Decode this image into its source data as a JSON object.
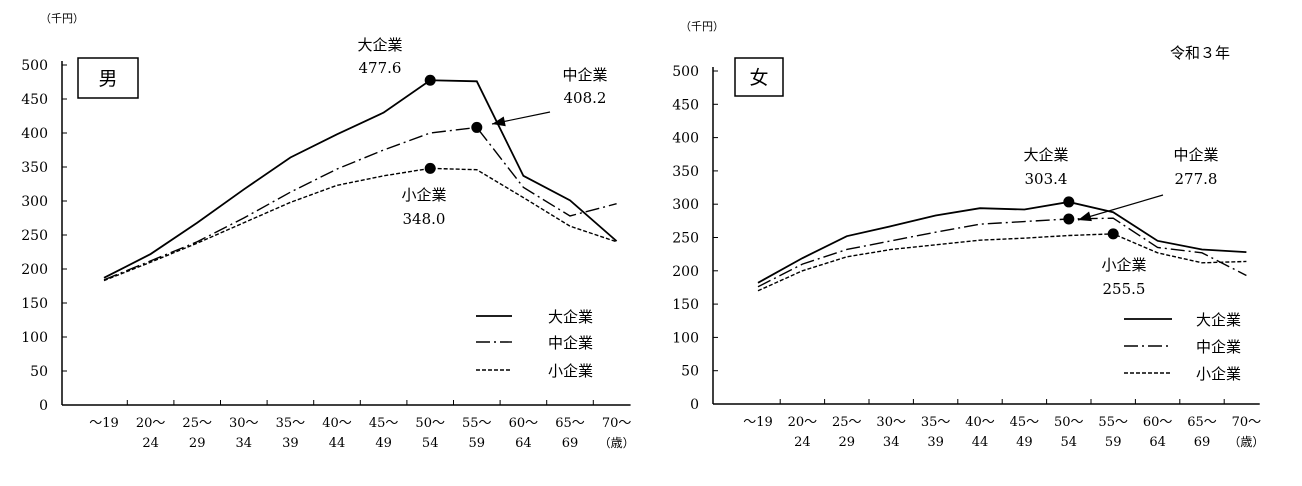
{
  "note": "令和３年",
  "chart_data": [
    {
      "type": "line",
      "title": "男",
      "ylabel": "（千円）",
      "xunit": "（歳）",
      "ylim": [
        0,
        500
      ],
      "yticks": [
        0,
        50,
        100,
        150,
        200,
        250,
        300,
        350,
        400,
        450,
        500
      ],
      "categories": [
        [
          "〜19",
          ""
        ],
        [
          "20〜",
          "24"
        ],
        [
          "25〜",
          "29"
        ],
        [
          "30〜",
          "34"
        ],
        [
          "35〜",
          "39"
        ],
        [
          "40〜",
          "44"
        ],
        [
          "45〜",
          "49"
        ],
        [
          "50〜",
          "54"
        ],
        [
          "55〜",
          "59"
        ],
        [
          "60〜",
          "64"
        ],
        [
          "65〜",
          "69"
        ],
        [
          "70〜",
          ""
        ]
      ],
      "series": [
        {
          "name": "大企業",
          "style": "solid",
          "values": [
            187,
            222,
            268,
            317,
            364,
            398,
            430,
            477.6,
            476,
            337,
            301,
            241
          ]
        },
        {
          "name": "中企業",
          "style": "dashdot",
          "values": [
            184,
            212,
            240,
            275,
            313,
            347,
            375,
            400,
            408.2,
            320,
            278,
            296
          ]
        },
        {
          "name": "小企業",
          "style": "dashed",
          "values": [
            183,
            210,
            238,
            268,
            298,
            323,
            337,
            348.0,
            346,
            305,
            263,
            240
          ]
        }
      ],
      "annotations": [
        {
          "series": 0,
          "index": 7,
          "label": "大企業",
          "value": "477.6"
        },
        {
          "series": 1,
          "index": 8,
          "label": "中企業",
          "value": "408.2"
        },
        {
          "series": 2,
          "index": 7,
          "label": "小企業",
          "value": "348.0"
        }
      ],
      "legend": "bottom-right"
    },
    {
      "type": "line",
      "title": "女",
      "ylabel": "（千円）",
      "xunit": "（歳）",
      "ylim": [
        0,
        500
      ],
      "yticks": [
        0,
        50,
        100,
        150,
        200,
        250,
        300,
        350,
        400,
        450,
        500
      ],
      "categories": [
        [
          "〜19",
          ""
        ],
        [
          "20〜",
          "24"
        ],
        [
          "25〜",
          "29"
        ],
        [
          "30〜",
          "34"
        ],
        [
          "35〜",
          "39"
        ],
        [
          "40〜",
          "44"
        ],
        [
          "45〜",
          "49"
        ],
        [
          "50〜",
          "54"
        ],
        [
          "55〜",
          "59"
        ],
        [
          "60〜",
          "64"
        ],
        [
          "65〜",
          "69"
        ],
        [
          "70〜",
          ""
        ]
      ],
      "series": [
        {
          "name": "大企業",
          "style": "solid",
          "values": [
            182,
            219,
            252,
            267,
            283,
            294,
            292,
            303.4,
            288,
            245,
            232,
            228
          ]
        },
        {
          "name": "中企業",
          "style": "dashdot",
          "values": [
            176,
            210,
            232,
            245,
            258,
            270,
            274,
            277.8,
            279,
            235,
            227,
            193
          ]
        },
        {
          "name": "小企業",
          "style": "dashed",
          "values": [
            170,
            200,
            221,
            232,
            239,
            246,
            249,
            253,
            255.5,
            227,
            212,
            214
          ]
        }
      ],
      "annotations": [
        {
          "series": 0,
          "index": 7,
          "label": "大企業",
          "value": "303.4"
        },
        {
          "series": 1,
          "index": 7,
          "label": "中企業",
          "value": "277.8"
        },
        {
          "series": 2,
          "index": 8,
          "label": "小企業",
          "value": "255.5"
        }
      ],
      "legend": "bottom-right"
    }
  ]
}
